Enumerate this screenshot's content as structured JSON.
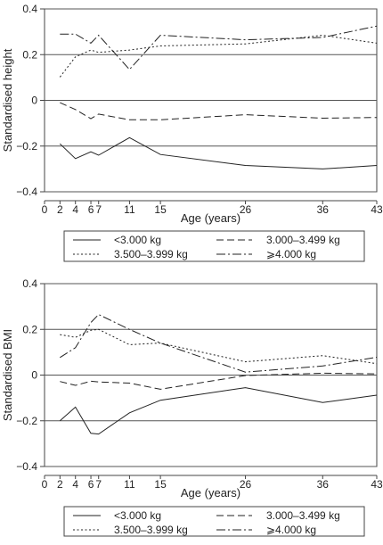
{
  "chart_data": [
    {
      "type": "line",
      "title": "",
      "xlabel": "Age (years)",
      "ylabel": "Standardised height",
      "xlim": [
        0,
        43
      ],
      "ylim": [
        -0.4,
        0.4
      ],
      "xticks": [
        0,
        2,
        4,
        6,
        7,
        11,
        15,
        26,
        36,
        43
      ],
      "yticks": [
        -0.4,
        -0.2,
        0,
        0.2,
        0.4
      ],
      "ytick_labels": [
        "−0.4",
        "−0.2",
        "0",
        "0.2",
        "0.4"
      ],
      "grid": "horizontal",
      "series": [
        {
          "name": "<3.000 kg",
          "style": "solid",
          "points": [
            [
              2,
              -0.19
            ],
            [
              4,
              -0.255
            ],
            [
              6,
              -0.225
            ],
            [
              7,
              -0.24
            ],
            [
              11,
              -0.163
            ],
            [
              15,
              -0.237
            ],
            [
              26,
              -0.285
            ],
            [
              36,
              -0.3
            ],
            [
              43,
              -0.285
            ]
          ]
        },
        {
          "name": "3.000–3.499 kg",
          "style": "dashed",
          "points": [
            [
              2,
              -0.01
            ],
            [
              4,
              -0.04
            ],
            [
              6,
              -0.08
            ],
            [
              7,
              -0.06
            ],
            [
              11,
              -0.085
            ],
            [
              15,
              -0.085
            ],
            [
              26,
              -0.063
            ],
            [
              36,
              -0.078
            ],
            [
              43,
              -0.075
            ]
          ]
        },
        {
          "name": "3.500–3.999 kg",
          "style": "dotted",
          "points": [
            [
              2,
              0.102
            ],
            [
              4,
              0.19
            ],
            [
              6,
              0.22
            ],
            [
              7,
              0.21
            ],
            [
              11,
              0.22
            ],
            [
              15,
              0.238
            ],
            [
              26,
              0.247
            ],
            [
              36,
              0.285
            ],
            [
              43,
              0.25
            ]
          ]
        },
        {
          "name": "≥4.000 kg",
          "style": "dashdot",
          "points": [
            [
              2,
              0.29
            ],
            [
              4,
              0.29
            ],
            [
              6,
              0.25
            ],
            [
              7,
              0.285
            ],
            [
              11,
              0.135
            ],
            [
              15,
              0.285
            ],
            [
              26,
              0.265
            ],
            [
              36,
              0.275
            ],
            [
              43,
              0.325
            ]
          ]
        }
      ],
      "legend": {
        "position": "below",
        "entries": [
          "<3.000 kg",
          "3.000–3.499 kg",
          "3.500–3.999 kg",
          "⩾4.000 kg"
        ]
      }
    },
    {
      "type": "line",
      "title": "",
      "xlabel": "Age (years)",
      "ylabel": "Standardised BMI",
      "xlim": [
        0,
        43
      ],
      "ylim": [
        -0.4,
        0.4
      ],
      "xticks": [
        0,
        2,
        4,
        6,
        7,
        11,
        15,
        26,
        36,
        43
      ],
      "yticks": [
        -0.4,
        -0.2,
        0,
        0.2,
        0.4
      ],
      "ytick_labels": [
        "−0.4",
        "−0.2",
        "0",
        "0.2",
        "0.4"
      ],
      "grid": "horizontal",
      "series": [
        {
          "name": "<3.000 kg",
          "style": "solid",
          "points": [
            [
              2,
              -0.2
            ],
            [
              4,
              -0.14
            ],
            [
              6,
              -0.255
            ],
            [
              7,
              -0.258
            ],
            [
              11,
              -0.165
            ],
            [
              15,
              -0.11
            ],
            [
              26,
              -0.055
            ],
            [
              36,
              -0.12
            ],
            [
              43,
              -0.088
            ]
          ]
        },
        {
          "name": "3.000–3.499 kg",
          "style": "dashed",
          "points": [
            [
              2,
              -0.028
            ],
            [
              4,
              -0.045
            ],
            [
              6,
              -0.027
            ],
            [
              7,
              -0.03
            ],
            [
              11,
              -0.035
            ],
            [
              15,
              -0.062
            ],
            [
              26,
              -0.002
            ],
            [
              36,
              0.008
            ],
            [
              43,
              0.005
            ]
          ]
        },
        {
          "name": "3.500–3.999 kg",
          "style": "dotted",
          "points": [
            [
              2,
              0.177
            ],
            [
              4,
              0.165
            ],
            [
              6,
              0.196
            ],
            [
              7,
              0.2
            ],
            [
              11,
              0.133
            ],
            [
              15,
              0.14
            ],
            [
              26,
              0.058
            ],
            [
              36,
              0.085
            ],
            [
              43,
              0.05
            ]
          ]
        },
        {
          "name": "≥4.000 kg",
          "style": "dashdot",
          "points": [
            [
              2,
              0.077
            ],
            [
              4,
              0.12
            ],
            [
              6,
              0.23
            ],
            [
              7,
              0.265
            ],
            [
              11,
              0.2
            ],
            [
              15,
              0.14
            ],
            [
              26,
              0.013
            ],
            [
              36,
              0.04
            ],
            [
              43,
              0.078
            ]
          ]
        }
      ],
      "legend": {
        "position": "below",
        "entries": [
          "<3.000 kg",
          "3.000–3.499 kg",
          "3.500–3.999 kg",
          "⩾4.000 kg"
        ]
      }
    }
  ]
}
